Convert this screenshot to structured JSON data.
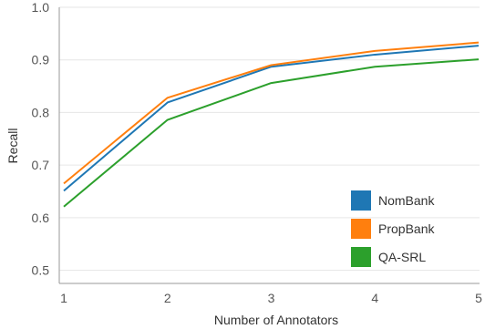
{
  "chart_data": {
    "type": "line",
    "xlabel": "Number of Annotators",
    "ylabel": "Recall",
    "x": [
      1,
      2,
      3,
      4,
      5
    ],
    "xlim": [
      1,
      5
    ],
    "ylim": [
      0.475,
      1.0
    ],
    "yticks": [
      "0.5",
      "0.6",
      "0.7",
      "0.8",
      "0.9",
      "1.0"
    ],
    "xticks": [
      "1",
      "2",
      "3",
      "4",
      "5"
    ],
    "grid": "y",
    "legend": "bottom-right",
    "series": [
      {
        "name": "NomBank",
        "color": "#1f77b4",
        "values": [
          0.651,
          0.819,
          0.887,
          0.91,
          0.927
        ]
      },
      {
        "name": "PropBank",
        "color": "#ff7f0e",
        "values": [
          0.665,
          0.828,
          0.89,
          0.917,
          0.933
        ]
      },
      {
        "name": "QA-SRL",
        "color": "#2ca02c",
        "values": [
          0.621,
          0.786,
          0.856,
          0.887,
          0.901
        ]
      }
    ]
  }
}
